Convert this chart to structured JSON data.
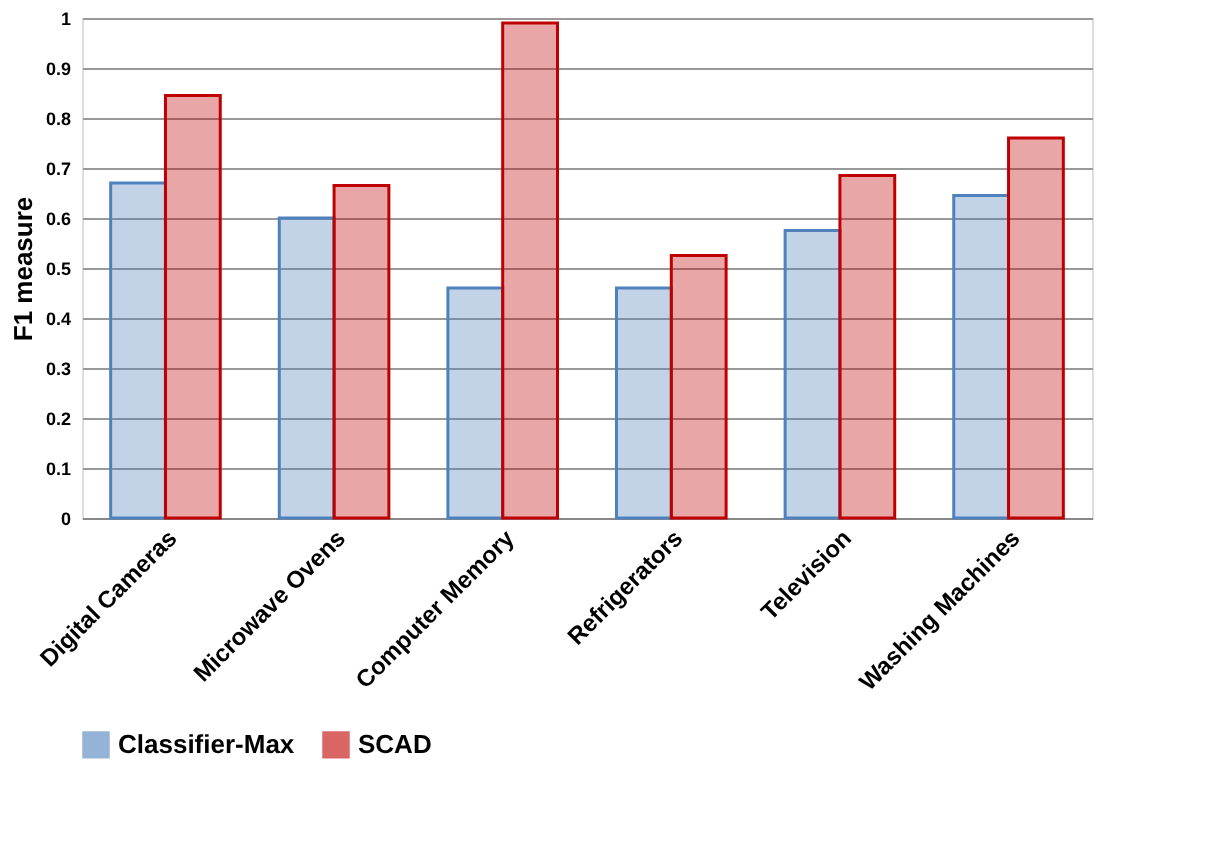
{
  "chart_data": {
    "type": "bar",
    "ylabel": "F1 measure",
    "categories": [
      "Digital Cameras",
      "Microwave Ovens",
      "Computer Memory",
      "Refrigerators",
      "Television",
      "Washing Machines"
    ],
    "series": [
      {
        "name": "Classifier-Max",
        "color": "#4f81bd",
        "values": [
          0.67,
          0.6,
          0.46,
          0.46,
          0.575,
          0.645
        ]
      },
      {
        "name": "SCAD",
        "color": "#c00000",
        "values": [
          0.845,
          0.665,
          0.99,
          0.525,
          0.685,
          0.76
        ]
      }
    ],
    "ylim": [
      0,
      1
    ],
    "yticks": [
      0,
      0.1,
      0.2,
      0.3,
      0.4,
      0.5,
      0.6,
      0.7,
      0.8,
      0.9,
      1
    ],
    "grid": "y",
    "legend": "bottom"
  }
}
